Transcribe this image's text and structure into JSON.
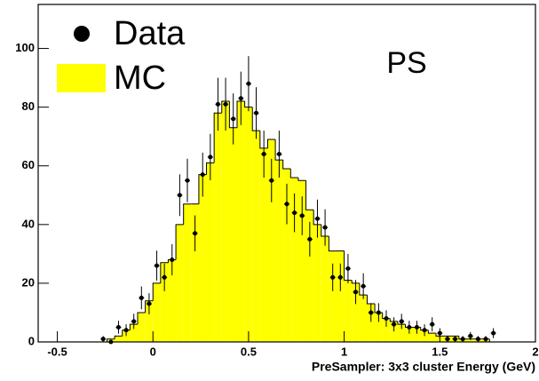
{
  "chart_data": {
    "type": "histogram",
    "x_label": "PreSampler: 3x3 cluster Energy (GeV)",
    "annotation": "PS",
    "bins": [
      -0.28,
      -0.24,
      -0.2,
      -0.16,
      -0.12,
      -0.08,
      -0.04,
      0,
      0.04,
      0.08,
      0.12,
      0.16,
      0.2,
      0.24,
      0.28,
      0.32,
      0.36,
      0.4,
      0.44,
      0.48,
      0.52,
      0.56,
      0.6,
      0.64,
      0.68,
      0.72,
      0.76,
      0.8,
      0.84,
      0.88,
      0.92,
      0.96,
      1,
      1.04,
      1.08,
      1.12,
      1.16,
      1.2,
      1.24,
      1.28,
      1.32,
      1.36,
      1.4,
      1.44,
      1.48,
      1.52,
      1.56,
      1.6,
      1.64,
      1.68,
      1.72,
      1.76,
      1.8
    ],
    "series": [
      {
        "name": "Data",
        "color": "#000000",
        "style": "points",
        "values": [
          1,
          0,
          5,
          4,
          7,
          15,
          13,
          26,
          22,
          28,
          50,
          55,
          37,
          57,
          63,
          81,
          81,
          76,
          83,
          88,
          78,
          64,
          55,
          64,
          47,
          44,
          43,
          35,
          42,
          39,
          22,
          22,
          25,
          17,
          19,
          10,
          10,
          8,
          6,
          7,
          5,
          5,
          4,
          6,
          3,
          1,
          1,
          1,
          2,
          1,
          1,
          3
        ],
        "errors": [
          1,
          0,
          2.2,
          2,
          2.6,
          3.9,
          3.6,
          5.1,
          4.7,
          5.3,
          7.1,
          7.4,
          6.1,
          7.5,
          7.9,
          9,
          9,
          8.7,
          9.1,
          9.4,
          8.8,
          8,
          7.4,
          8,
          6.9,
          6.6,
          6.6,
          5.9,
          6.5,
          6.2,
          4.7,
          4.7,
          5,
          4.1,
          4.4,
          3.2,
          3.2,
          2.8,
          2.4,
          2.6,
          2.2,
          2.2,
          2,
          2.4,
          1.7,
          1,
          1,
          1,
          1.4,
          1,
          1,
          1.7
        ]
      },
      {
        "name": "MC",
        "color": "#ffff00",
        "style": "filled",
        "values": [
          0,
          1,
          2,
          4,
          6,
          10,
          14,
          20,
          27,
          28,
          40,
          47,
          47,
          57,
          61,
          78,
          82,
          73,
          82,
          80,
          72,
          66,
          69,
          62,
          59,
          56,
          55,
          45,
          40,
          36,
          31,
          31,
          21,
          20,
          16,
          13,
          10,
          8,
          7,
          6,
          5,
          5,
          4,
          3,
          2,
          2,
          2,
          1,
          1,
          1,
          1,
          0
        ]
      }
    ],
    "xlim": [
      -0.6,
      2
    ],
    "ylim": [
      0,
      115
    ],
    "xticks": [
      -0.5,
      0,
      0.5,
      1,
      1.5,
      2
    ],
    "yticks": [
      0,
      20,
      40,
      60,
      80,
      100
    ]
  }
}
